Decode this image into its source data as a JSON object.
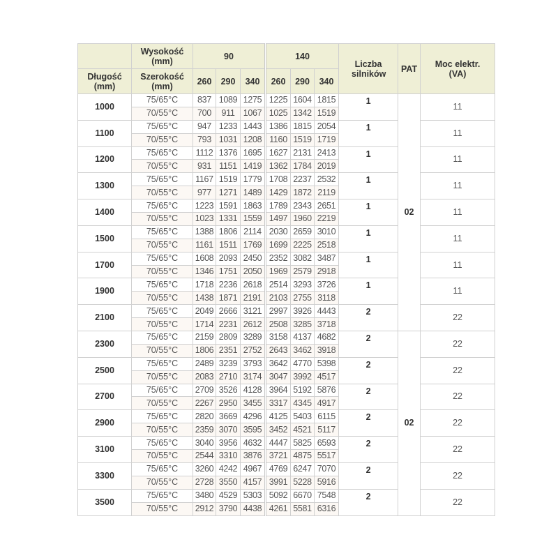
{
  "header": {
    "length": "Długość (mm)",
    "height": "Wysokość (mm)",
    "width": "Szerokość (mm)",
    "height_values": [
      "90",
      "140"
    ],
    "width_values": [
      "260",
      "290",
      "340"
    ],
    "motors": "Liczba silników",
    "pat": "PAT",
    "power": "Moc elektr. (VA)"
  },
  "temps": [
    "75/65°C",
    "70/55°C"
  ],
  "pat_groups": [
    "02",
    "02"
  ],
  "rows": [
    {
      "length": "1000",
      "motors": "1",
      "power": "11",
      "a": [
        "837",
        "1089",
        "1275",
        "1225",
        "1604",
        "1815"
      ],
      "b": [
        "700",
        "911",
        "1067",
        "1025",
        "1342",
        "1519"
      ]
    },
    {
      "length": "1100",
      "motors": "1",
      "power": "11",
      "a": [
        "947",
        "1233",
        "1443",
        "1386",
        "1815",
        "2054"
      ],
      "b": [
        "793",
        "1031",
        "1208",
        "1160",
        "1519",
        "1719"
      ]
    },
    {
      "length": "1200",
      "motors": "1",
      "power": "11",
      "a": [
        "1112",
        "1376",
        "1695",
        "1627",
        "2131",
        "2413"
      ],
      "b": [
        "931",
        "1151",
        "1419",
        "1362",
        "1784",
        "2019"
      ]
    },
    {
      "length": "1300",
      "motors": "1",
      "power": "11",
      "a": [
        "1167",
        "1519",
        "1779",
        "1708",
        "2237",
        "2532"
      ],
      "b": [
        "977",
        "1271",
        "1489",
        "1429",
        "1872",
        "2119"
      ]
    },
    {
      "length": "1400",
      "motors": "1",
      "power": "11",
      "a": [
        "1223",
        "1591",
        "1863",
        "1789",
        "2343",
        "2651"
      ],
      "b": [
        "1023",
        "1331",
        "1559",
        "1497",
        "1960",
        "2219"
      ]
    },
    {
      "length": "1500",
      "motors": "1",
      "power": "11",
      "a": [
        "1388",
        "1806",
        "2114",
        "2030",
        "2659",
        "3010"
      ],
      "b": [
        "1161",
        "1511",
        "1769",
        "1699",
        "2225",
        "2518"
      ]
    },
    {
      "length": "1700",
      "motors": "1",
      "power": "11",
      "a": [
        "1608",
        "2093",
        "2450",
        "2352",
        "3082",
        "3487"
      ],
      "b": [
        "1346",
        "1751",
        "2050",
        "1969",
        "2579",
        "2918"
      ]
    },
    {
      "length": "1900",
      "motors": "1",
      "power": "11",
      "a": [
        "1718",
        "2236",
        "2618",
        "2514",
        "3293",
        "3726"
      ],
      "b": [
        "1438",
        "1871",
        "2191",
        "2103",
        "2755",
        "3118"
      ]
    },
    {
      "length": "2100",
      "motors": "2",
      "power": "22",
      "a": [
        "2049",
        "2666",
        "3121",
        "2997",
        "3926",
        "4443"
      ],
      "b": [
        "1714",
        "2231",
        "2612",
        "2508",
        "3285",
        "3718"
      ]
    },
    {
      "length": "2300",
      "motors": "2",
      "power": "22",
      "a": [
        "2159",
        "2809",
        "3289",
        "3158",
        "4137",
        "4682"
      ],
      "b": [
        "1806",
        "2351",
        "2752",
        "2643",
        "3462",
        "3918"
      ]
    },
    {
      "length": "2500",
      "motors": "2",
      "power": "22",
      "a": [
        "2489",
        "3239",
        "3793",
        "3642",
        "4770",
        "5398"
      ],
      "b": [
        "2083",
        "2710",
        "3174",
        "3047",
        "3992",
        "4517"
      ]
    },
    {
      "length": "2700",
      "motors": "2",
      "power": "22",
      "a": [
        "2709",
        "3526",
        "4128",
        "3964",
        "5192",
        "5876"
      ],
      "b": [
        "2267",
        "2950",
        "3455",
        "3317",
        "4345",
        "4917"
      ]
    },
    {
      "length": "2900",
      "motors": "2",
      "power": "22",
      "a": [
        "2820",
        "3669",
        "4296",
        "4125",
        "5403",
        "6115"
      ],
      "b": [
        "2359",
        "3070",
        "3595",
        "3452",
        "4521",
        "5117"
      ]
    },
    {
      "length": "3100",
      "motors": "2",
      "power": "22",
      "a": [
        "3040",
        "3956",
        "4632",
        "4447",
        "5825",
        "6593"
      ],
      "b": [
        "2544",
        "3310",
        "3876",
        "3721",
        "4875",
        "5517"
      ]
    },
    {
      "length": "3300",
      "motors": "2",
      "power": "22",
      "a": [
        "3260",
        "4242",
        "4967",
        "4769",
        "6247",
        "7070"
      ],
      "b": [
        "2728",
        "3550",
        "4157",
        "3991",
        "5228",
        "5916"
      ]
    },
    {
      "length": "3500",
      "motors": "2",
      "power": "22",
      "a": [
        "3480",
        "4529",
        "5303",
        "5092",
        "6670",
        "7548"
      ],
      "b": [
        "2912",
        "3790",
        "4438",
        "4261",
        "5581",
        "6316"
      ]
    }
  ]
}
